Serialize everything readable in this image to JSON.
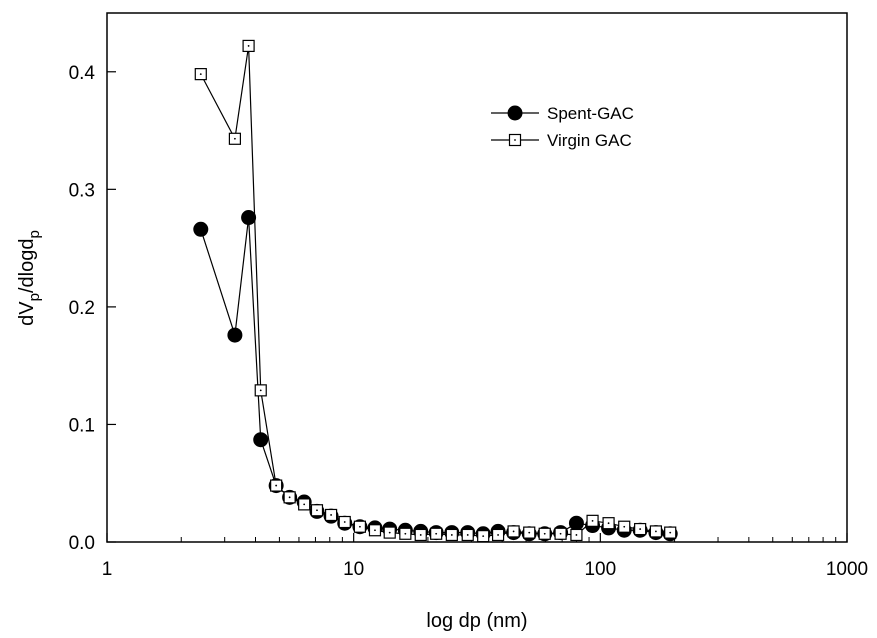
{
  "chart_data": {
    "type": "scatter",
    "xscale": "log",
    "xlim": [
      1,
      1000
    ],
    "ylim": [
      0,
      0.45
    ],
    "xlabel": "log dp (nm)",
    "ylabel": {
      "base": "dV",
      "sub1": "p",
      "mid": "/dlogd",
      "sub2": "p"
    },
    "xticks": [
      1,
      10,
      100,
      1000
    ],
    "xtick_labels": [
      "1",
      "10",
      "100",
      "1000"
    ],
    "yticks": [
      0,
      0.1,
      0.2,
      0.3,
      0.4
    ],
    "ytick_labels": [
      "0.0",
      "0.1",
      "0.2",
      "0.3",
      "0.4"
    ],
    "grid": false,
    "legend_position": "top-right",
    "series": [
      {
        "name": "Spent-GAC",
        "marker": "filled-circle",
        "color": "#000000",
        "x": [
          2.4,
          3.3,
          3.75,
          4.2,
          4.85,
          5.5,
          6.3,
          7.1,
          8.1,
          9.2,
          10.6,
          12.2,
          14.0,
          16.2,
          18.7,
          21.6,
          25.0,
          29.0,
          33.5,
          38.5,
          44.5,
          51.5,
          59.5,
          69.0,
          80.0,
          93.0,
          108.0,
          125.0,
          145.0,
          168.0,
          192.0
        ],
        "y": [
          0.266,
          0.176,
          0.276,
          0.087,
          0.048,
          0.038,
          0.034,
          0.026,
          0.022,
          0.016,
          0.013,
          0.012,
          0.011,
          0.01,
          0.009,
          0.008,
          0.008,
          0.008,
          0.007,
          0.009,
          0.008,
          0.007,
          0.007,
          0.008,
          0.016,
          0.014,
          0.012,
          0.01,
          0.01,
          0.008,
          0.007
        ]
      },
      {
        "name": "Virgin GAC",
        "marker": "open-square",
        "color": "#000000",
        "x": [
          2.4,
          3.3,
          3.75,
          4.2,
          4.85,
          5.5,
          6.3,
          7.1,
          8.1,
          9.2,
          10.6,
          12.2,
          14.0,
          16.2,
          18.7,
          21.6,
          25.0,
          29.0,
          33.5,
          38.5,
          44.5,
          51.5,
          59.5,
          69.0,
          80.0,
          93.0,
          108.0,
          125.0,
          145.0,
          168.0,
          192.0
        ],
        "y": [
          0.398,
          0.343,
          0.422,
          0.129,
          0.048,
          0.038,
          0.032,
          0.027,
          0.023,
          0.017,
          0.013,
          0.01,
          0.008,
          0.007,
          0.006,
          0.007,
          0.006,
          0.006,
          0.005,
          0.006,
          0.009,
          0.008,
          0.007,
          0.007,
          0.006,
          0.018,
          0.016,
          0.013,
          0.011,
          0.009,
          0.008
        ]
      }
    ]
  }
}
